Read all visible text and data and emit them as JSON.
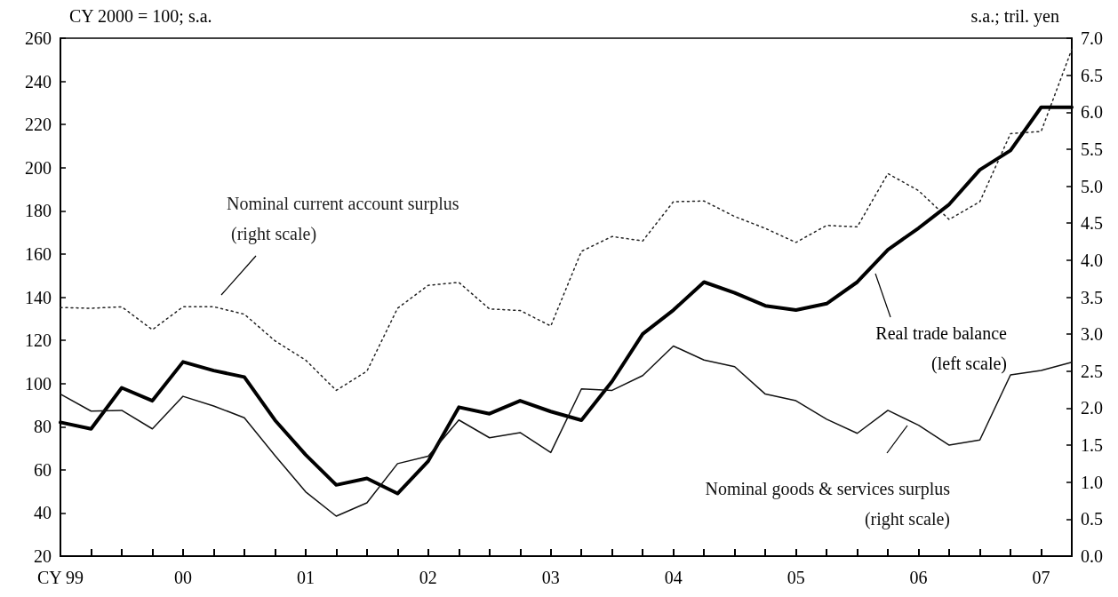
{
  "chart_data": {
    "type": "line",
    "ylabel": "CY 2000 = 100; s.a.",
    "y2label": "s.a.; tril. yen",
    "categories": [
      "CY 99",
      null,
      null,
      null,
      "00",
      null,
      null,
      null,
      "01",
      null,
      null,
      null,
      "02",
      null,
      null,
      null,
      "03",
      null,
      null,
      null,
      "04",
      null,
      null,
      null,
      "05",
      null,
      null,
      null,
      "06",
      null,
      null,
      null,
      "07",
      null
    ],
    "series": [
      {
        "name": "Nominal current account surplus\n (right scale)",
        "color": "#222222",
        "axis": "y2",
        "line_style": "dotted",
        "values": [
          3.36,
          3.35,
          3.37,
          3.06,
          3.37,
          3.37,
          3.27,
          2.91,
          2.65,
          2.24,
          2.5,
          3.35,
          3.66,
          3.7,
          3.34,
          3.32,
          3.11,
          4.12,
          4.32,
          4.26,
          4.79,
          4.8,
          4.59,
          4.43,
          4.24,
          4.47,
          4.45,
          5.17,
          4.94,
          4.55,
          4.79,
          5.71,
          5.74,
          6.85
        ]
      },
      {
        "name": "Real trade balance\n(left scale)",
        "color": "#000000",
        "axis": "y",
        "line_style": "solid",
        "values": [
          82,
          79,
          98,
          92,
          110,
          106,
          103,
          83,
          67,
          53,
          56,
          49,
          64,
          89,
          86,
          92,
          87,
          83,
          101,
          123,
          134,
          147,
          142,
          136,
          134,
          137,
          147,
          162,
          172,
          183,
          199,
          208,
          228,
          228
        ]
      },
      {
        "name": "Nominal goods & services surplus\n(right scale)",
        "color": "#111111",
        "axis": "y2",
        "line_style": "solid",
        "values": [
          2.19,
          1.96,
          1.97,
          1.72,
          2.16,
          2.03,
          1.87,
          1.36,
          0.87,
          0.54,
          0.72,
          1.25,
          1.35,
          1.84,
          1.6,
          1.67,
          1.4,
          2.26,
          2.24,
          2.44,
          2.84,
          2.65,
          2.56,
          2.19,
          2.1,
          1.85,
          1.66,
          1.97,
          1.77,
          1.5,
          1.57,
          2.45,
          2.51,
          2.62
        ]
      }
    ],
    "ylim": [
      20,
      260
    ],
    "yticks": [
      20,
      40,
      60,
      80,
      100,
      120,
      140,
      160,
      180,
      200,
      220,
      240,
      260
    ],
    "y2lim": [
      0,
      7
    ],
    "y2ticks": [
      {
        "value": 0,
        "label": "0.0"
      },
      {
        "value": 0.5,
        "label": "0.5"
      },
      {
        "value": 1,
        "label": "1.0"
      },
      {
        "value": 1.5,
        "label": "1.5"
      },
      {
        "value": 2,
        "label": "2.0"
      },
      {
        "value": 2.5,
        "label": "2.5"
      },
      {
        "value": 3,
        "label": "3.0"
      },
      {
        "value": 3.5,
        "label": "3.5"
      },
      {
        "value": 4,
        "label": "4.0"
      },
      {
        "value": 4.5,
        "label": "4.5"
      },
      {
        "value": 5,
        "label": "5.0"
      },
      {
        "value": 5.5,
        "label": "5.5"
      },
      {
        "value": 6,
        "label": "6.0"
      },
      {
        "value": 6.5,
        "label": "6.5"
      },
      {
        "value": 7,
        "label": "7.0"
      }
    ],
    "grid": false,
    "legend": false
  }
}
